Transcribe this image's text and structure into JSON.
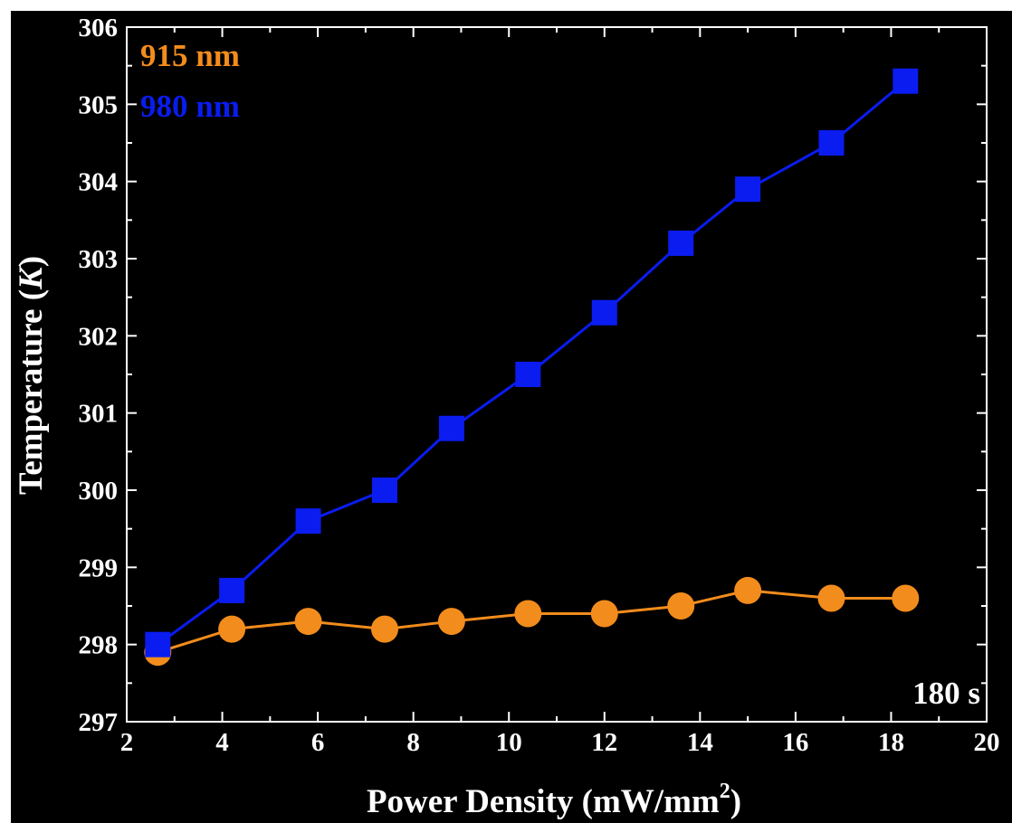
{
  "chart_data": {
    "type": "line",
    "xlabel": "Power Density (mW/mm",
    "xlabel_sup": "2",
    "xlabel_close": ")",
    "ylabel_main": "Temperature (",
    "ylabel_unit": "K",
    "ylabel_close": ")",
    "xlim": [
      2,
      20
    ],
    "ylim": [
      297,
      306
    ],
    "xticks": [
      2,
      4,
      6,
      8,
      10,
      12,
      14,
      16,
      18,
      20
    ],
    "yticks": [
      297,
      298,
      299,
      300,
      301,
      302,
      303,
      304,
      305,
      306
    ],
    "annotation": "180 s",
    "legend_position": "top-left",
    "grid": false,
    "background": "#000000",
    "axis_color": "#ffffff",
    "series": [
      {
        "name": "915 nm",
        "color": "#f28c1c",
        "marker": "circle",
        "x": [
          2.65,
          4.2,
          5.8,
          7.4,
          8.8,
          10.4,
          12.0,
          13.6,
          15.0,
          16.75,
          18.3
        ],
        "y": [
          297.9,
          298.2,
          298.3,
          298.2,
          298.3,
          298.4,
          298.4,
          298.5,
          298.7,
          298.6,
          298.6
        ]
      },
      {
        "name": "980 nm",
        "color": "#0a1cf0",
        "marker": "square",
        "x": [
          2.65,
          4.2,
          5.8,
          7.4,
          8.8,
          10.4,
          12.0,
          13.6,
          15.0,
          16.75,
          18.3
        ],
        "y": [
          298.0,
          298.7,
          299.6,
          300.0,
          300.8,
          301.5,
          302.3,
          303.2,
          303.9,
          304.5,
          305.3
        ]
      }
    ]
  }
}
